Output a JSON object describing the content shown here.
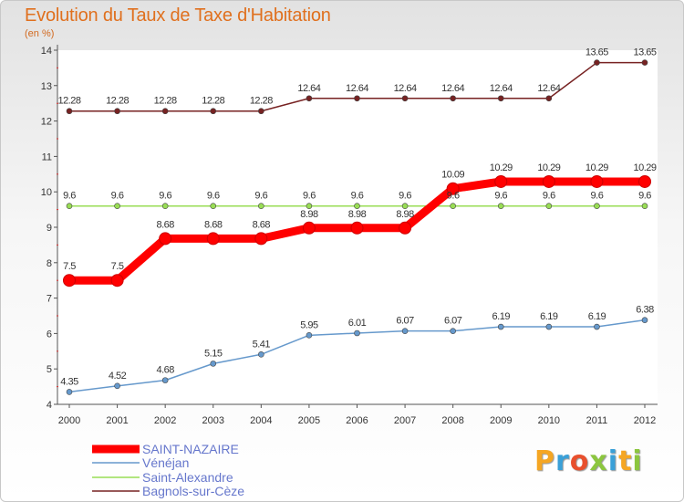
{
  "chart_data": {
    "type": "line",
    "title": "Evolution du Taux de Taxe d'Habitation",
    "subtitle": "(en %)",
    "x": [
      "2000",
      "2001",
      "2002",
      "2003",
      "2004",
      "2005",
      "2006",
      "2007",
      "2008",
      "2009",
      "2010",
      "2011",
      "2012"
    ],
    "ylim": [
      4,
      14
    ],
    "yticks": [
      "4",
      "5",
      "6",
      "7",
      "8",
      "9",
      "10",
      "11",
      "12",
      "13",
      "14"
    ],
    "grid": false,
    "legend_position": "bottom-left",
    "series": [
      {
        "name": "SAINT-NAZAIRE",
        "color": "#ff0000",
        "values": [
          7.5,
          7.5,
          8.68,
          8.68,
          8.68,
          8.98,
          8.98,
          8.98,
          10.09,
          10.29,
          10.29,
          10.29,
          10.29
        ],
        "labels": [
          "7.5",
          "7.5",
          "8.68",
          "8.68",
          "8.68",
          "8.98",
          "8.98",
          "8.98",
          "10.09",
          "10.29",
          "10.29",
          "10.29",
          "10.29"
        ]
      },
      {
        "name": "Vénéjan",
        "color": "#6699cc",
        "values": [
          4.35,
          4.52,
          4.68,
          5.15,
          5.41,
          5.95,
          6.01,
          6.07,
          6.07,
          6.19,
          6.19,
          6.19,
          6.38
        ],
        "labels": [
          "4.35",
          "4.52",
          "4.68",
          "5.15",
          "5.41",
          "5.95",
          "6.01",
          "6.07",
          "6.07",
          "6.19",
          "6.19",
          "6.19",
          "6.38"
        ]
      },
      {
        "name": "Saint-Alexandre",
        "color": "#99dd55",
        "values": [
          9.6,
          9.6,
          9.6,
          9.6,
          9.6,
          9.6,
          9.6,
          9.6,
          9.6,
          9.6,
          9.6,
          9.6,
          9.6
        ],
        "labels": [
          "9.6",
          "9.6",
          "9.6",
          "9.6",
          "9.6",
          "9.6",
          "9.6",
          "9.6",
          "9.6",
          "9.6",
          "9.6",
          "9.6",
          "9.6"
        ]
      },
      {
        "name": "Bagnols-sur-Cèze",
        "color": "#772222",
        "values": [
          12.28,
          12.28,
          12.28,
          12.28,
          12.28,
          12.64,
          12.64,
          12.64,
          12.64,
          12.64,
          12.64,
          13.65,
          13.65
        ],
        "labels": [
          "12.28",
          "12.28",
          "12.28",
          "12.28",
          "12.28",
          "12.64",
          "12.64",
          "12.64",
          "12.64",
          "12.64",
          "12.64",
          "13.65",
          "13.65"
        ]
      }
    ]
  },
  "logo": {
    "text": "Proxiti",
    "letters": [
      "P",
      "r",
      "o",
      "x",
      "i",
      "t",
      "i"
    ],
    "colors": [
      "#f5a623",
      "#3aa0d8",
      "#e8502e",
      "#8cc63f",
      "#3aa0d8",
      "#f5a623",
      "#8cc63f"
    ]
  }
}
